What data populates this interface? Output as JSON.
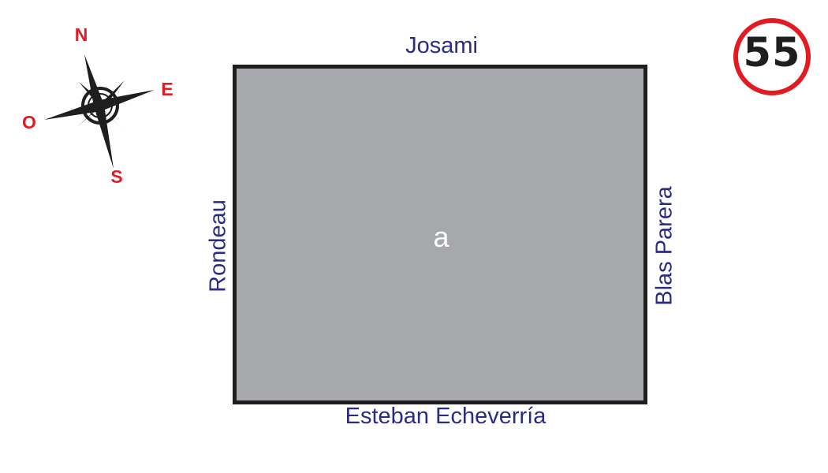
{
  "streets": {
    "north": "Josami",
    "south": "Esteban Echeverría",
    "west": "Rondeau",
    "east": "Blas Parera"
  },
  "block": {
    "label": "a",
    "fill_color": "#a7a8ac",
    "border_color": "#1e1e1e"
  },
  "compass": {
    "north": "N",
    "east": "E",
    "south": "S",
    "west": "O",
    "label_color": "#e21b23"
  },
  "speed_sign": {
    "value": "55",
    "ring_color": "#e21b23"
  },
  "colors": {
    "street_label": "#2b2b86",
    "background": "#ffffff"
  }
}
